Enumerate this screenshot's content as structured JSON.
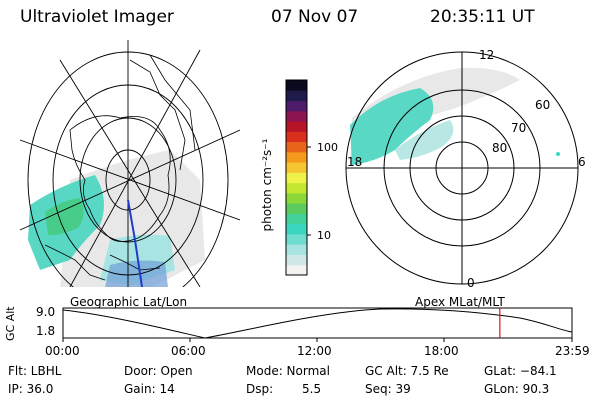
{
  "header": {
    "title": "Ultraviolet Imager",
    "date": "07 Nov 07",
    "time": "20:35:11 UT"
  },
  "colorbar": {
    "unit_label": "photon cm⁻²s⁻¹",
    "ticks": [
      "100",
      "10"
    ],
    "colors": [
      "#f2f2f2",
      "#cfe8e8",
      "#a8e4e2",
      "#6fdcd0",
      "#3bd6c0",
      "#42d29a",
      "#5ccc60",
      "#8cd83a",
      "#c4e830",
      "#eef24a",
      "#f6c630",
      "#f59a1c",
      "#e8641a",
      "#d8301c",
      "#b81428",
      "#8c1450",
      "#4e1a6a",
      "#1e1a4a",
      "#0a0a1e"
    ]
  },
  "geo_panel": {
    "label": "Geographic Lat/Lon"
  },
  "polar_panel": {
    "label": "Apex MLat/MLT",
    "lat_labels": [
      "60",
      "70",
      "80"
    ],
    "mlt_labels": [
      "12",
      "18",
      "6",
      "0"
    ]
  },
  "altitude_plot": {
    "ylabel": "GC Alt",
    "yticks": [
      "9.0",
      "1.8"
    ],
    "xticks": [
      "00:00",
      "06:00",
      "12:00",
      "18:00",
      "23:59"
    ],
    "marker_time": "20:35",
    "marker_color": "#cc1a1a"
  },
  "status": {
    "flt": "Flt: LBHL",
    "door": "Door: Open",
    "mode": "Mode: Normal",
    "gc_alt": "GC Alt: 7.5 Re",
    "glat": "GLat: −84.1",
    "ip": "IP: 36.0",
    "gain": "Gain: 14",
    "dsp_label": "Dsp:",
    "dsp_value": "5.5",
    "seq": "Seq: 39",
    "glon": "GLon:  90.3"
  }
}
